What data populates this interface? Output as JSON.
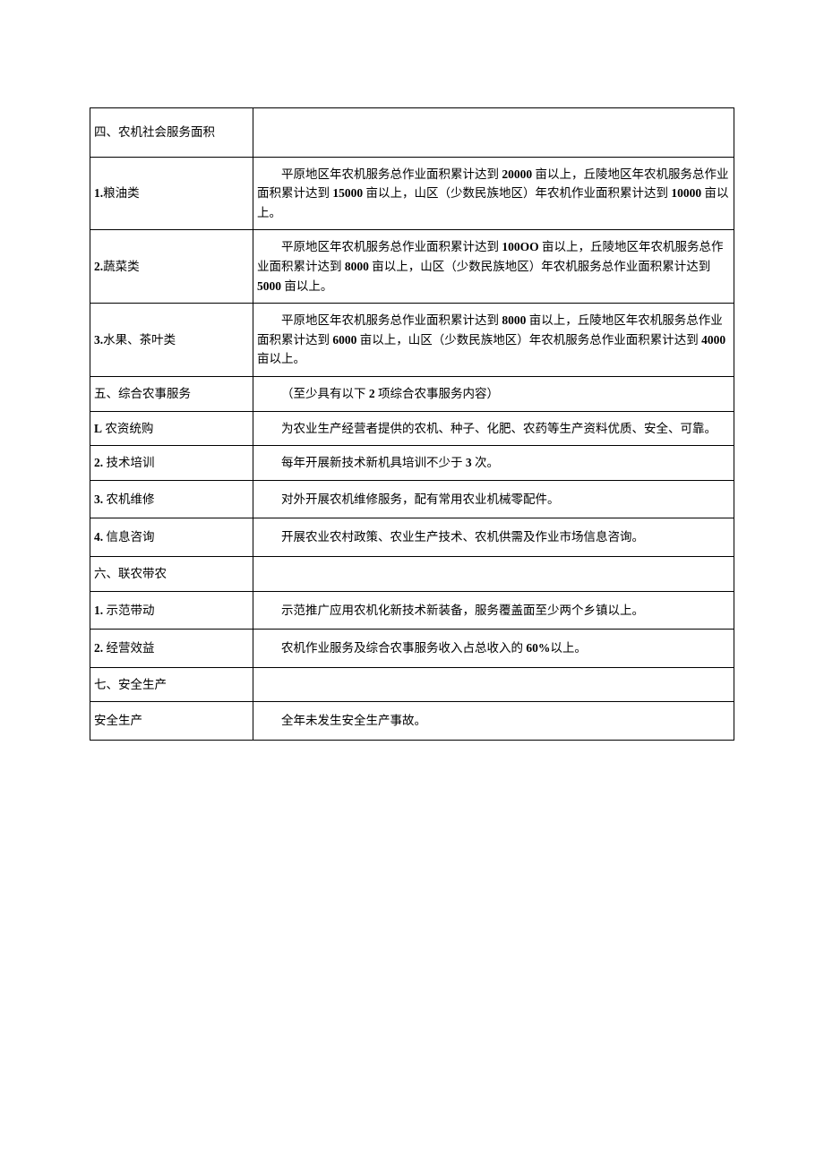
{
  "table": {
    "columns": {
      "label_width": 182,
      "content_width": 538
    },
    "border_color": "#000000",
    "background_color": "#ffffff",
    "text_color": "#000000",
    "font_size": 13.5,
    "rows": [
      {
        "label": "四、农机社会服务面积",
        "content": "",
        "is_section": true
      },
      {
        "label": "1.粮油类",
        "content": "平原地区年农机服务总作业面积累计达到 20000 亩以上，丘陵地区年农机服务总作业面积累计达到 15000 亩以上，山区（少数民族地区）年农机作业面积累计达到 10000 亩以上。",
        "indent_first": true
      },
      {
        "label": "2.蔬菜类",
        "content": "平原地区年农机服务总作业面积累计达到 100OO 亩以上，丘陵地区年农机服务总作业面积累计达到 8000 亩以上，山区（少数民族地区）年农机服务总作业面积累计达到 5000 亩以上。",
        "indent_first": true
      },
      {
        "label": "3.水果、茶叶类",
        "content": "平原地区年农机服务总作业面积累计达到 8000 亩以上，丘陵地区年农机服务总作业面积累计达到 6000 亩以上，山区（少数民族地区）年农机服务总作业面积累计达到 4000 亩以上。",
        "indent_first": true
      },
      {
        "label": "五、综合农事服务",
        "content": "（至少具有以下 2 项综合农事服务内容）",
        "indent_first": true
      },
      {
        "label": "L 农资统购",
        "content": "为农业生产经营者提供的农机、种子、化肥、农药等生产资料优质、安全、可靠。",
        "indent_first": true
      },
      {
        "label": "2. 技术培训",
        "content": "每年开展新技术新机具培训不少于 3 次。",
        "indent_first": true
      },
      {
        "label": "3. 农机维修",
        "content": "对外开展农机维修服务，配有常用农业机械零配件。",
        "indent_first": true,
        "tall": true
      },
      {
        "label": "4. 信息咨询",
        "content": "开展农业农村政策、农业生产技术、农机供需及作业市场信息咨询。",
        "indent_first": true,
        "tall": true
      },
      {
        "label": "六、联农带农",
        "content": ""
      },
      {
        "label": "1. 示范带动",
        "content": "示范推广应用农机化新技术新装备，服务覆盖面至少两个乡镇以上。",
        "indent_first": true,
        "tall": true
      },
      {
        "label": "2. 经营效益",
        "content": "农机作业服务及综合农事服务收入占总收入的 60%以上。",
        "indent_first": true,
        "tall": true
      },
      {
        "label": "七、安全生产",
        "content": ""
      },
      {
        "label": "安全生产",
        "content": "全年未发生安全生产事故。",
        "indent_first": true,
        "tall": true
      }
    ]
  }
}
